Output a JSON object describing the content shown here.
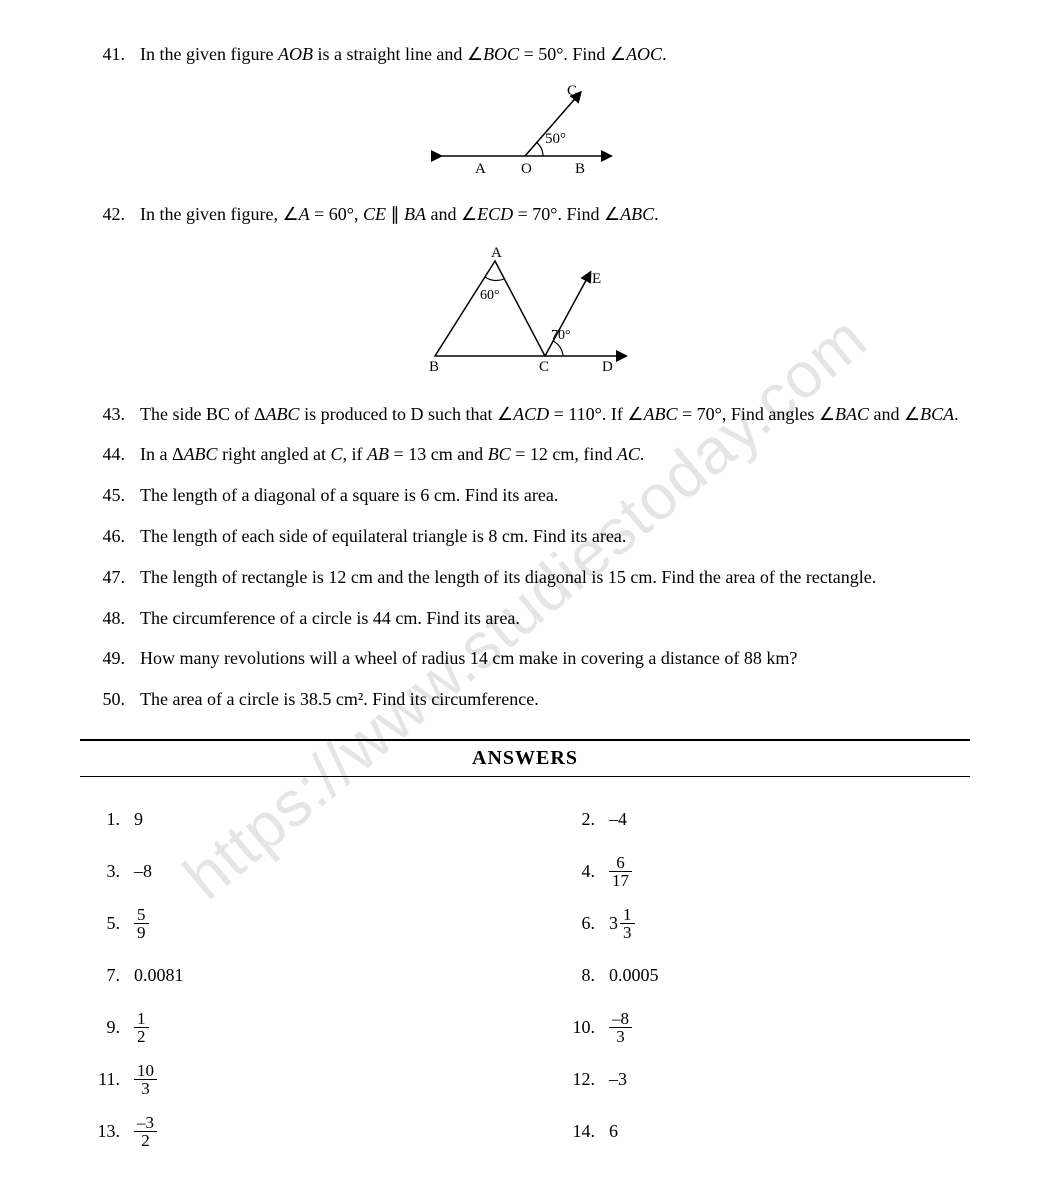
{
  "watermark_text": "https://www.studiestoday.com",
  "questions": [
    {
      "num": "41.",
      "text": "In the given figure <span class='it'>AOB</span> is a straight line and ∠<span class='it'>BOC</span> = 50°. Find ∠<span class='it'>AOC</span>."
    },
    {
      "num": "42.",
      "text": "In the given figure, ∠<span class='it'>A</span> = 60°, <span class='it'>CE</span> ∥ <span class='it'>BA</span> and ∠<span class='it'>ECD</span> = 70°. Find ∠<span class='it'>ABC</span>."
    },
    {
      "num": "43.",
      "text": "The side BC of Δ<span class='it'>ABC</span>  is produced to D such that ∠<span class='it'>ACD</span> = 110°. If ∠<span class='it'>ABC</span> = 70°, Find angles ∠<span class='it'>BAC</span> and ∠<span class='it'>BCA</span>."
    },
    {
      "num": "44.",
      "text": "In a Δ<span class='it'>ABC</span> right angled at <span class='it'>C</span>, if <span class='it'>AB</span> = 13 cm and <span class='it'>BC</span> = 12 cm, find <span class='it'>AC</span>."
    },
    {
      "num": "45.",
      "text": "The length of a diagonal of a square is 6 cm. Find its area."
    },
    {
      "num": "46.",
      "text": "The length of each side of equilateral triangle is 8 cm. Find its area."
    },
    {
      "num": "47.",
      "text": "The length of rectangle is 12 cm and the length of its diagonal is 15 cm. Find the area of the rectangle."
    },
    {
      "num": "48.",
      "text": "The circumference of a circle is 44 cm. Find its area."
    },
    {
      "num": "49.",
      "text": "How many revolutions will a wheel of radius 14 cm make in covering a distance of 88 km?"
    },
    {
      "num": "50.",
      "text": "The area of a circle is 38.5 cm². Find its circumference."
    }
  ],
  "figures": {
    "fig41": {
      "labels": {
        "A": "A",
        "O": "O",
        "B": "B",
        "C": "C",
        "angle": "50°"
      }
    },
    "fig42": {
      "labels": {
        "A": "A",
        "B": "B",
        "C": "C",
        "D": "D",
        "E": "E",
        "angleA": "60°",
        "angleC": "70°"
      }
    }
  },
  "answers_title": "ANSWERS",
  "answers": [
    {
      "num": "1.",
      "val": "9"
    },
    {
      "num": "2.",
      "val": "–4"
    },
    {
      "num": "3.",
      "val": "–8"
    },
    {
      "num": "4.",
      "frac": {
        "n": "6",
        "d": "17"
      }
    },
    {
      "num": "5.",
      "frac": {
        "n": "5",
        "d": "9"
      }
    },
    {
      "num": "6.",
      "mixed": {
        "w": "3",
        "n": "1",
        "d": "3"
      }
    },
    {
      "num": "7.",
      "val": "0.0081"
    },
    {
      "num": "8.",
      "val": "0.0005"
    },
    {
      "num": "9.",
      "frac": {
        "n": "1",
        "d": "2"
      }
    },
    {
      "num": "10.",
      "frac": {
        "n": "–8",
        "d": "3"
      }
    },
    {
      "num": "11.",
      "frac": {
        "n": "10",
        "d": "3"
      }
    },
    {
      "num": "12.",
      "val": "–3"
    },
    {
      "num": "13.",
      "frac": {
        "n": "–3",
        "d": "2"
      }
    },
    {
      "num": "14.",
      "val": "6"
    }
  ],
  "colors": {
    "text": "#000000",
    "background": "#ffffff",
    "watermark": "rgba(0,0,0,0.10)",
    "rule": "#000000"
  },
  "fontsize_body": 18
}
